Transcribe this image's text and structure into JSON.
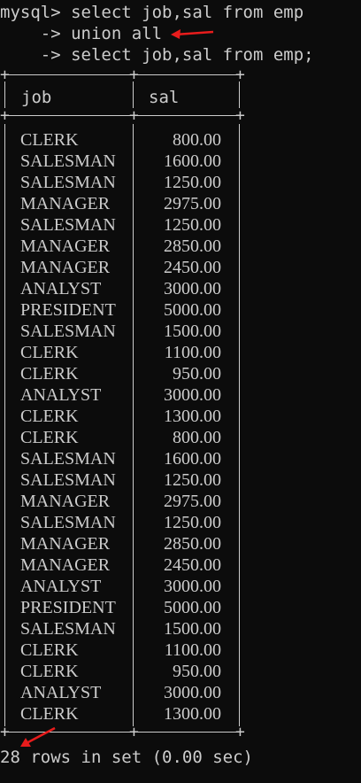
{
  "prompt": {
    "line1": "mysql> select job,sal from emp",
    "line2": "    -> union all",
    "line3": "    -> select job,sal from emp;"
  },
  "table": {
    "columns": [
      "job",
      "sal"
    ],
    "rows": [
      [
        "CLERK",
        "800.00"
      ],
      [
        "SALESMAN",
        "1600.00"
      ],
      [
        "SALESMAN",
        "1250.00"
      ],
      [
        "MANAGER",
        "2975.00"
      ],
      [
        "SALESMAN",
        "1250.00"
      ],
      [
        "MANAGER",
        "2850.00"
      ],
      [
        "MANAGER",
        "2450.00"
      ],
      [
        "ANALYST",
        "3000.00"
      ],
      [
        "PRESIDENT",
        "5000.00"
      ],
      [
        "SALESMAN",
        "1500.00"
      ],
      [
        "CLERK",
        "1100.00"
      ],
      [
        "CLERK",
        "950.00"
      ],
      [
        "ANALYST",
        "3000.00"
      ],
      [
        "CLERK",
        "1300.00"
      ],
      [
        "CLERK",
        "800.00"
      ],
      [
        "SALESMAN",
        "1600.00"
      ],
      [
        "SALESMAN",
        "1250.00"
      ],
      [
        "MANAGER",
        "2975.00"
      ],
      [
        "SALESMAN",
        "1250.00"
      ],
      [
        "MANAGER",
        "2850.00"
      ],
      [
        "MANAGER",
        "2450.00"
      ],
      [
        "ANALYST",
        "3000.00"
      ],
      [
        "PRESIDENT",
        "5000.00"
      ],
      [
        "SALESMAN",
        "1500.00"
      ],
      [
        "CLERK",
        "1100.00"
      ],
      [
        "CLERK",
        "950.00"
      ],
      [
        "ANALYST",
        "3000.00"
      ],
      [
        "CLERK",
        "1300.00"
      ]
    ]
  },
  "footer": {
    "status": "28 rows in set (0.00 sec)"
  },
  "annotation_color": "#e81c1c"
}
